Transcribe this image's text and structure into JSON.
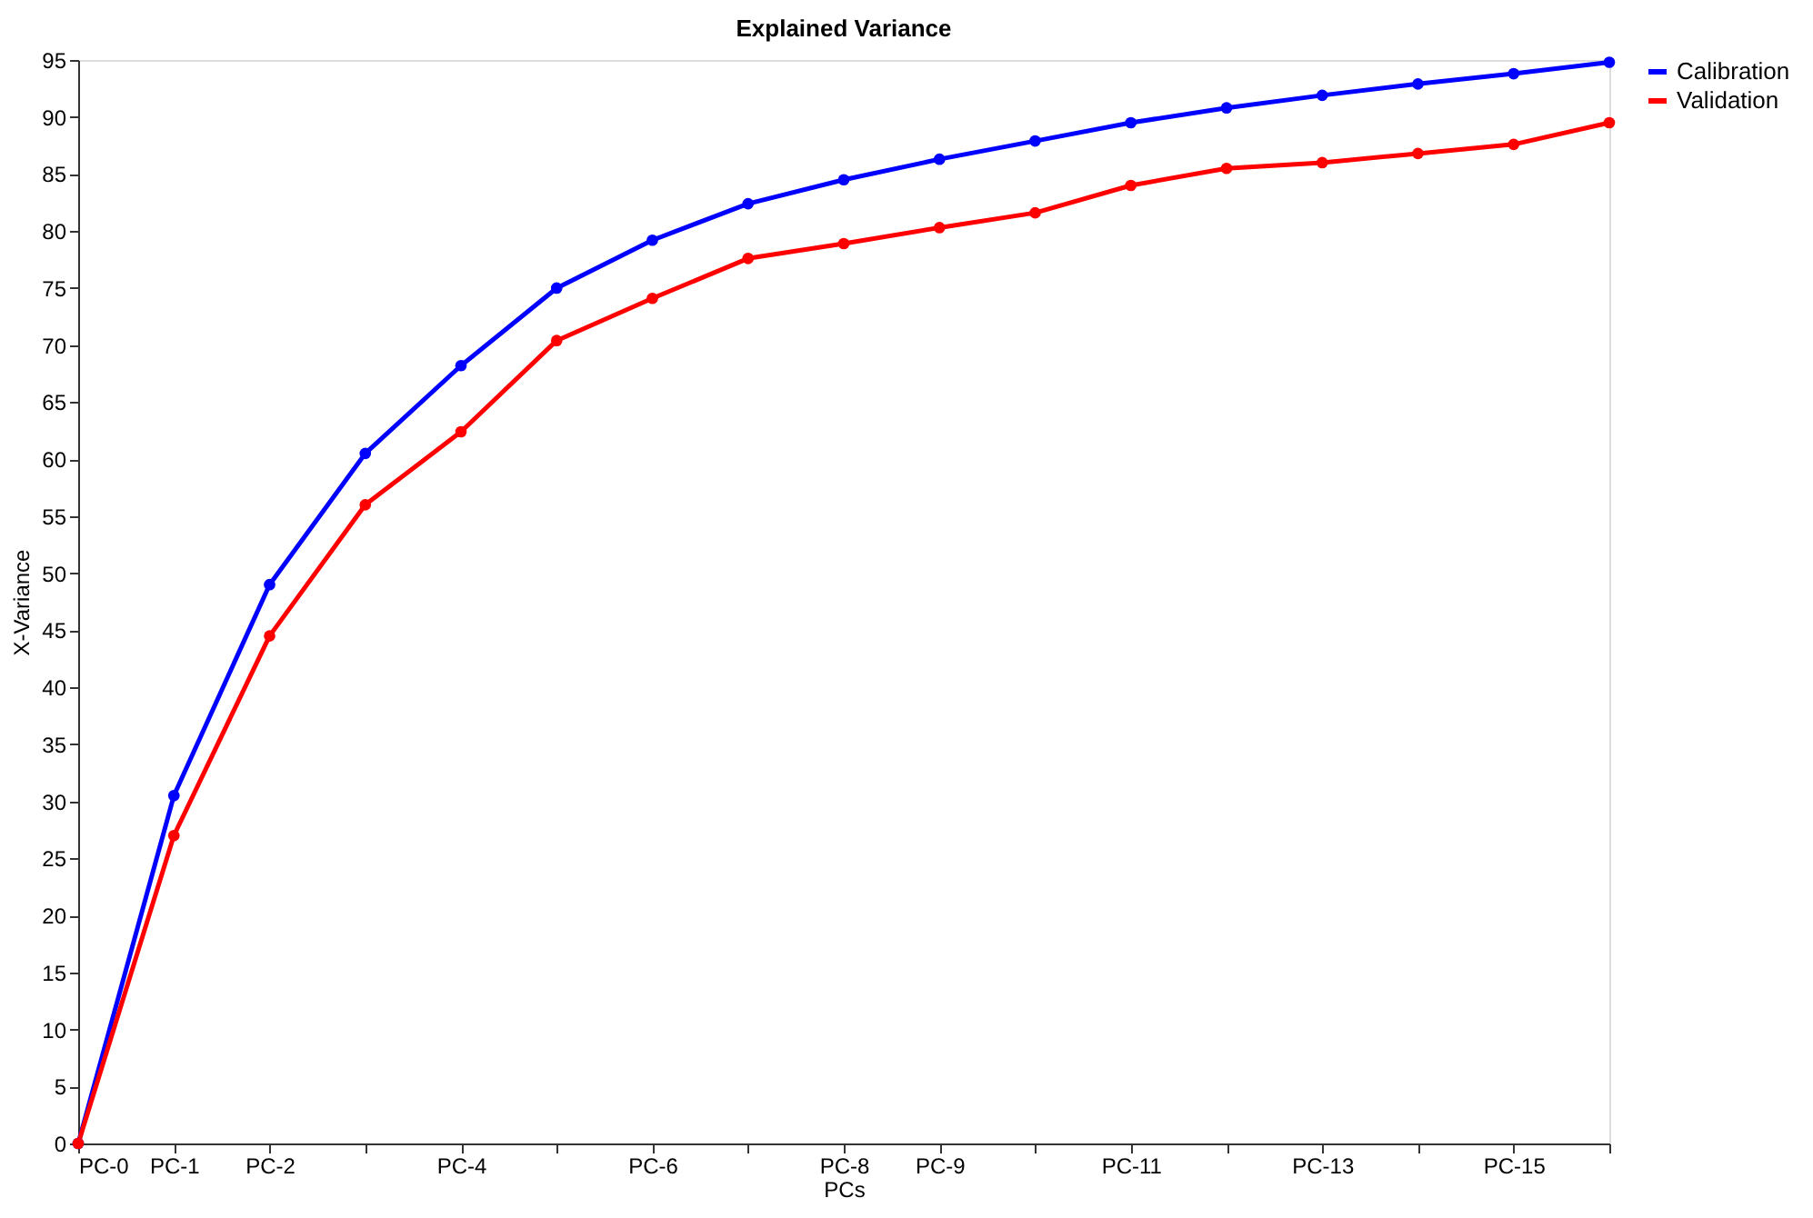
{
  "chart_data": {
    "type": "line",
    "title": "Explained Variance",
    "xlabel": "PCs",
    "ylabel": "X-Variance",
    "categories": [
      "PC-0",
      "PC-1",
      "PC-2",
      null,
      "PC-4",
      null,
      "PC-6",
      null,
      "PC-8",
      "PC-9",
      null,
      "PC-11",
      null,
      "PC-13",
      null,
      "PC-15",
      null
    ],
    "series": [
      {
        "name": "Calibration",
        "color": "#0000ff",
        "values": [
          0,
          30.5,
          49,
          60.5,
          68.2,
          75,
          79.2,
          82.4,
          84.5,
          86.3,
          87.9,
          89.5,
          90.8,
          91.9,
          92.9,
          93.8,
          94.8
        ]
      },
      {
        "name": "Validation",
        "color": "#ff0000",
        "values": [
          0,
          27,
          44.5,
          56,
          62.4,
          70.4,
          74.1,
          77.6,
          78.9,
          80.3,
          81.6,
          84,
          85.5,
          86,
          86.8,
          87.6,
          89.5
        ]
      }
    ],
    "ylim": [
      0,
      95
    ],
    "yticks": [
      0,
      5,
      10,
      15,
      20,
      25,
      30,
      35,
      40,
      45,
      50,
      55,
      60,
      65,
      70,
      75,
      80,
      85,
      90,
      95
    ],
    "grid": false,
    "legend": "right",
    "marker": "circle",
    "line_style": "solid"
  }
}
